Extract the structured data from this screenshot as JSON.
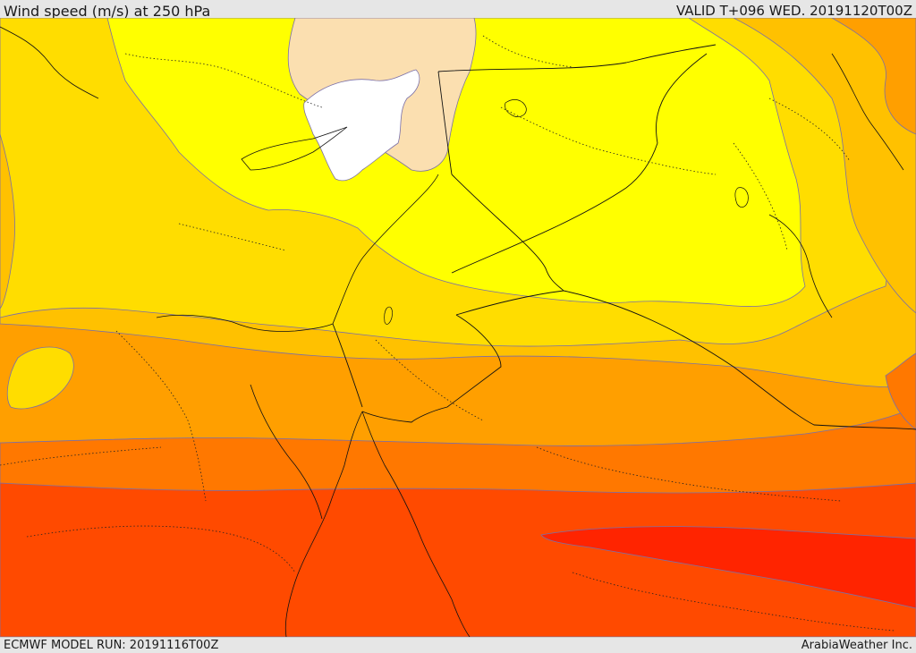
{
  "header": {
    "title": "Wind speed (m/s) at 250 hPa",
    "valid_time": "VALID T+096 WED. 20191120T00Z"
  },
  "footer": {
    "model_run": "ECMWF MODEL RUN: 20191116T00Z",
    "credit": "ArabiaWeather Inc."
  },
  "map": {
    "variable": "wind speed",
    "level_hpa": 250,
    "units": "m/s",
    "colors": {
      "calm": "#ffffff",
      "very_low": "#fbdfb0",
      "low": "#ffff00",
      "low_mid": "#ffdd00",
      "mid": "#ffc100",
      "mid_high": "#ff9f00",
      "high": "#ff7800",
      "higher": "#ff4a00",
      "highest": "#ff2400",
      "contour": "#7a6fa8",
      "border": "#111111"
    }
  }
}
